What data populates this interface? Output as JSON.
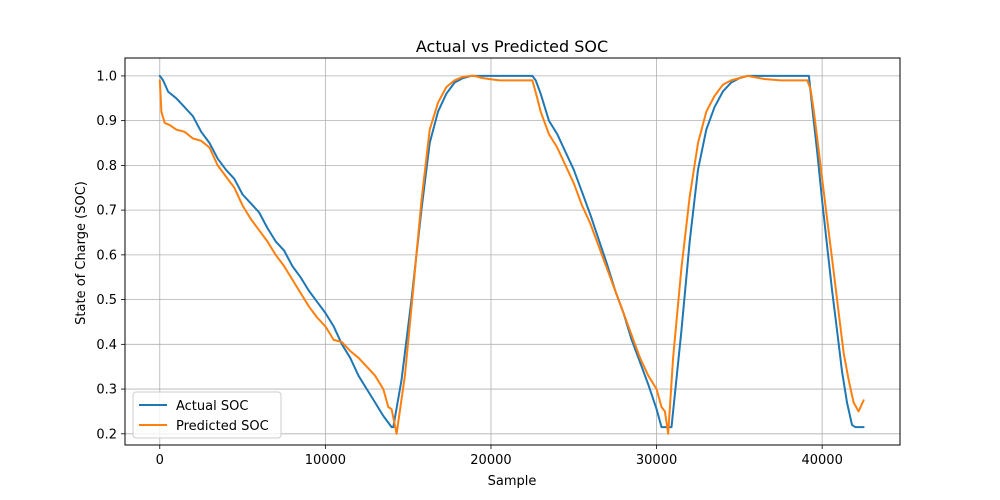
{
  "chart_data": {
    "type": "line",
    "title": "Actual vs Predicted SOC",
    "xlabel": "Sample",
    "ylabel": "State of Charge (SOC)",
    "xlim": [
      -2100,
      44700
    ],
    "ylim": [
      0.175,
      1.04
    ],
    "xticks": [
      0,
      10000,
      20000,
      30000,
      40000
    ],
    "xtick_labels": [
      "0",
      "10000",
      "20000",
      "30000",
      "40000"
    ],
    "yticks": [
      0.2,
      0.3,
      0.4,
      0.5,
      0.6,
      0.7,
      0.8,
      0.9,
      1.0
    ],
    "ytick_labels": [
      "0.2",
      "0.3",
      "0.4",
      "0.5",
      "0.6",
      "0.7",
      "0.8",
      "0.9",
      "1.0"
    ],
    "grid": true,
    "legend_position": "lower-left",
    "series": [
      {
        "name": "Actual SOC",
        "color": "#1f77b4",
        "x": [
          0,
          200,
          500,
          1000,
          1500,
          2000,
          2500,
          3000,
          3500,
          4000,
          4500,
          5000,
          5500,
          6000,
          6500,
          7000,
          7500,
          8000,
          8500,
          9000,
          9500,
          10000,
          10500,
          11000,
          11500,
          12000,
          12500,
          13000,
          13500,
          14000,
          14100,
          14600,
          15200,
          15800,
          16300,
          16800,
          17300,
          17800,
          18300,
          18800,
          19500,
          20500,
          21500,
          22500,
          22700,
          23000,
          23500,
          24000,
          24500,
          25000,
          25500,
          26000,
          26500,
          27000,
          27500,
          28000,
          28500,
          29000,
          29500,
          30000,
          30300,
          30800,
          30900,
          31500,
          32000,
          32500,
          33000,
          33500,
          34000,
          34500,
          35000,
          35500,
          36500,
          37500,
          38500,
          39200,
          39400,
          39700,
          40000,
          40300,
          40600,
          40900,
          41200,
          41500,
          41800,
          42000,
          42500
        ],
        "y": [
          1.0,
          0.99,
          0.965,
          0.95,
          0.93,
          0.91,
          0.875,
          0.85,
          0.815,
          0.79,
          0.77,
          0.735,
          0.715,
          0.695,
          0.66,
          0.63,
          0.61,
          0.575,
          0.55,
          0.52,
          0.495,
          0.47,
          0.44,
          0.4,
          0.37,
          0.33,
          0.3,
          0.27,
          0.24,
          0.215,
          0.215,
          0.32,
          0.5,
          0.7,
          0.85,
          0.92,
          0.96,
          0.985,
          0.995,
          1.0,
          1.0,
          1.0,
          1.0,
          1.0,
          0.99,
          0.96,
          0.9,
          0.87,
          0.83,
          0.79,
          0.74,
          0.69,
          0.635,
          0.58,
          0.52,
          0.47,
          0.41,
          0.36,
          0.31,
          0.255,
          0.215,
          0.215,
          0.215,
          0.43,
          0.63,
          0.79,
          0.88,
          0.93,
          0.965,
          0.985,
          0.995,
          1.0,
          1.0,
          1.0,
          1.0,
          1.0,
          0.93,
          0.83,
          0.72,
          0.62,
          0.52,
          0.43,
          0.34,
          0.27,
          0.22,
          0.215,
          0.215
        ]
      },
      {
        "name": "Predicted SOC",
        "color": "#ff7f0e",
        "x": [
          0,
          100,
          300,
          600,
          1000,
          1500,
          2000,
          2500,
          3000,
          3500,
          4000,
          4500,
          5000,
          5500,
          6000,
          6500,
          7000,
          7500,
          8000,
          8500,
          9000,
          9500,
          10000,
          10500,
          11000,
          11500,
          12000,
          12500,
          13000,
          13500,
          13800,
          14000,
          14300,
          14800,
          15300,
          15800,
          16300,
          16800,
          17300,
          17800,
          18300,
          18800,
          19000,
          19500,
          20500,
          21500,
          22500,
          22800,
          23000,
          23500,
          24000,
          24500,
          25000,
          25500,
          26000,
          26500,
          27000,
          27500,
          28000,
          28500,
          29000,
          29500,
          30000,
          30300,
          30500,
          30700,
          31000,
          31500,
          32000,
          32500,
          33000,
          33500,
          34000,
          34500,
          35000,
          35500,
          36500,
          37500,
          38500,
          39100,
          39300,
          39500,
          39800,
          40100,
          40400,
          40700,
          41000,
          41300,
          41600,
          41900,
          42200,
          42500
        ],
        "y": [
          0.99,
          0.92,
          0.895,
          0.89,
          0.88,
          0.875,
          0.86,
          0.855,
          0.84,
          0.8,
          0.775,
          0.75,
          0.71,
          0.68,
          0.655,
          0.63,
          0.6,
          0.575,
          0.545,
          0.515,
          0.485,
          0.46,
          0.44,
          0.41,
          0.405,
          0.385,
          0.37,
          0.35,
          0.33,
          0.3,
          0.26,
          0.255,
          0.2,
          0.33,
          0.52,
          0.72,
          0.88,
          0.94,
          0.975,
          0.99,
          0.998,
          1.0,
          1.0,
          0.995,
          0.99,
          0.99,
          0.99,
          0.95,
          0.92,
          0.87,
          0.84,
          0.8,
          0.76,
          0.71,
          0.67,
          0.62,
          0.57,
          0.52,
          0.47,
          0.42,
          0.37,
          0.33,
          0.3,
          0.26,
          0.25,
          0.2,
          0.37,
          0.57,
          0.73,
          0.85,
          0.92,
          0.955,
          0.98,
          0.99,
          0.995,
          1.0,
          0.993,
          0.99,
          0.99,
          0.99,
          0.97,
          0.92,
          0.83,
          0.74,
          0.65,
          0.56,
          0.47,
          0.38,
          0.32,
          0.27,
          0.25,
          0.275
        ]
      }
    ]
  }
}
